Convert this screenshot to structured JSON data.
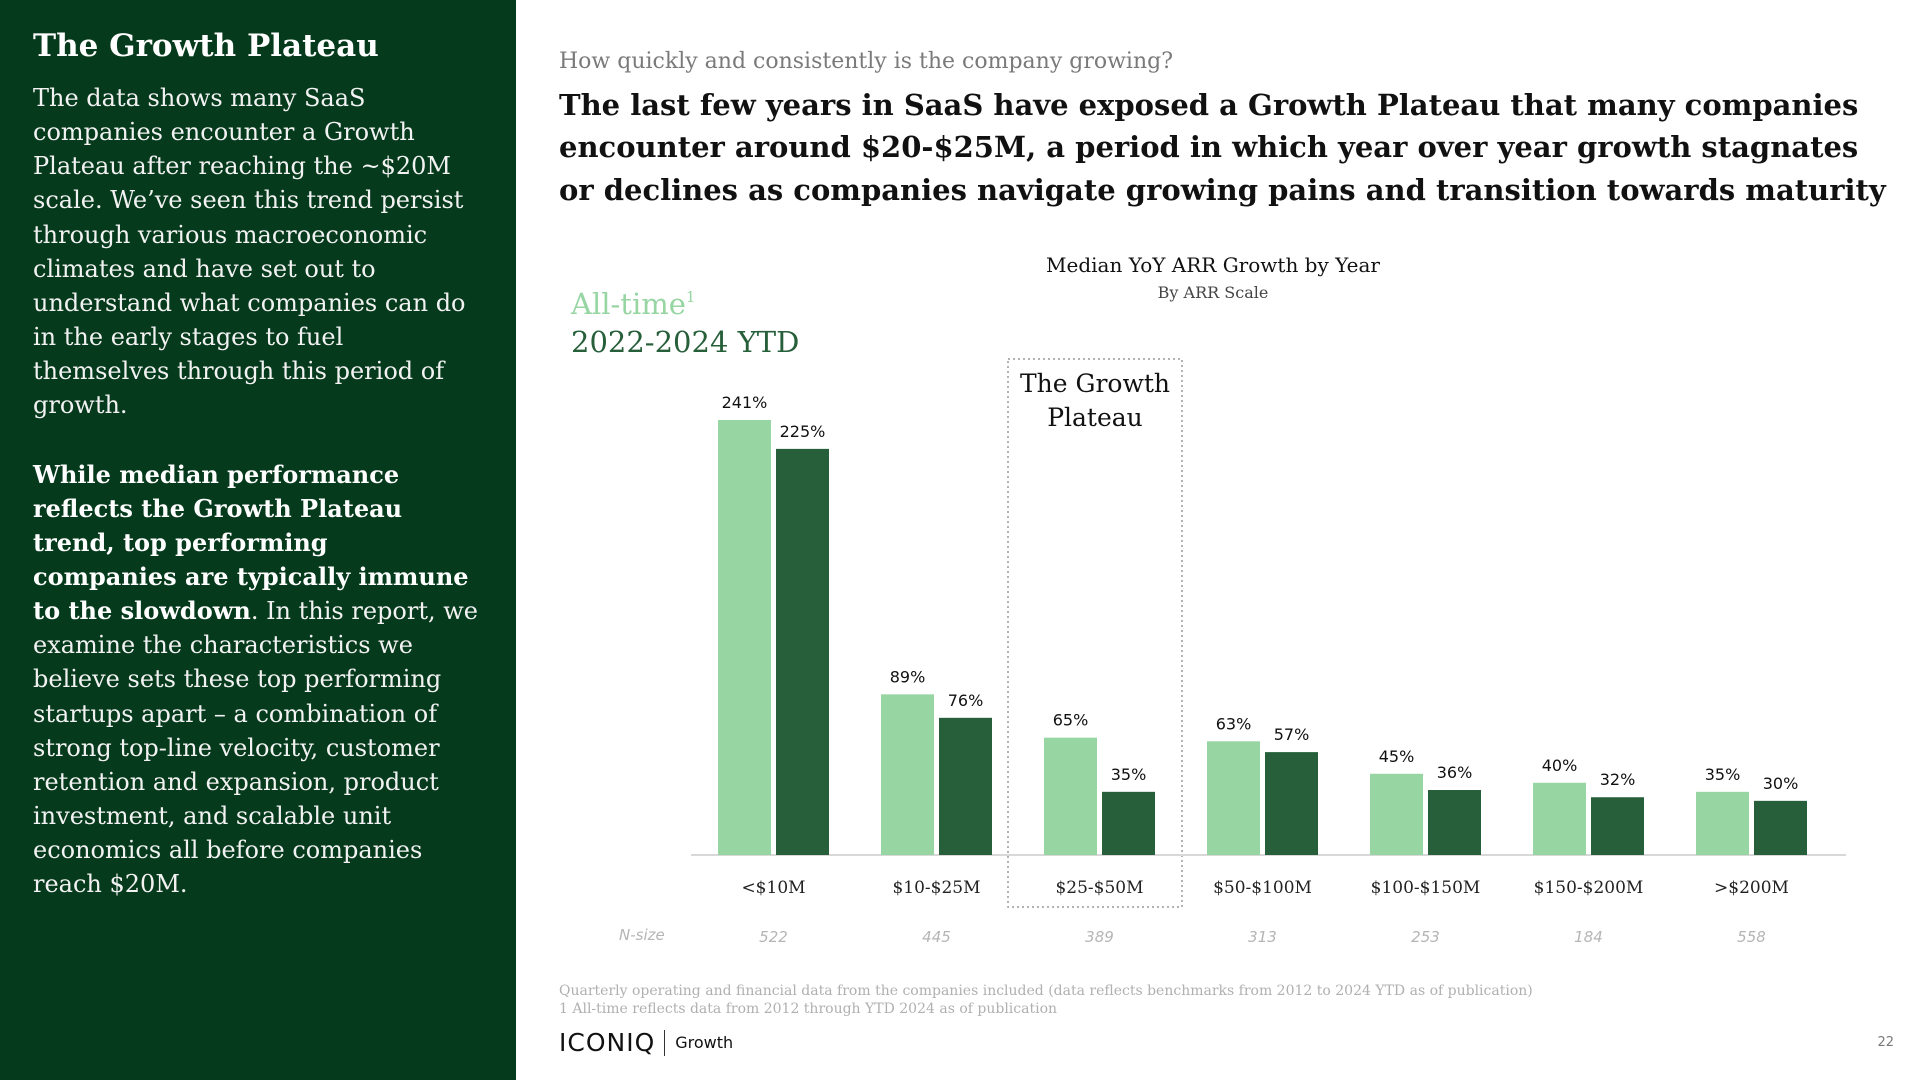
{
  "sidebar": {
    "title": "The Growth Plateau",
    "paragraph1": "The data shows many SaaS companies encounter a Growth Plateau after reaching the ~$20M scale. We’ve seen this trend persist through various macroeconomic climates and have set out to understand what companies can do in the early stages to fuel themselves through this period of growth.",
    "paragraph2_bold": "While median performance reflects the Growth Plateau trend, top performing companies are typically immune to the slowdown",
    "paragraph2_rest": ". In this report, we examine the characteristics we believe sets these top performing startups apart – a combination of strong top-line velocity, customer retention and expansion, product investment, and scalable unit economics all before companies reach $20M."
  },
  "header": {
    "kicker": "How quickly and consistently is the company growing?",
    "headline": "The last few years in SaaS have exposed a Growth Plateau that many companies encounter around $20-$25M, a period in which year over year growth stagnates or declines as companies navigate growing pains and transition towards maturity"
  },
  "chart_data": {
    "type": "bar",
    "title": "Median YoY ARR Growth by Year",
    "subtitle": "By ARR Scale",
    "categories": [
      "<$10M",
      "$10-$25M",
      "$25-$50M",
      "$50-$100M",
      "$100-$150M",
      "$150-$200M",
      ">$200M"
    ],
    "series": [
      {
        "name": "All-time",
        "values": [
          241,
          89,
          65,
          63,
          45,
          40,
          35
        ],
        "color": "#97d5a3"
      },
      {
        "name": "2022-2024 YTD",
        "values": [
          225,
          76,
          35,
          57,
          36,
          32,
          30
        ],
        "color": "#265f3a"
      }
    ],
    "value_suffix": "%",
    "legend_superscript": "1",
    "nsize_label": "N-size",
    "nsize": [
      "522",
      "445",
      "389",
      "313",
      "253",
      "184",
      "558"
    ],
    "annotation": "The Growth Plateau",
    "ylim": [
      0,
      241
    ],
    "grid": false,
    "legend_position": "top-left"
  },
  "footer": {
    "note1": "Quarterly operating and financial data from the companies included (data reflects benchmarks from 2012 to 2024 YTD as of publication)",
    "note2": "1 All-time reflects data from 2012 through YTD 2024 as of publication",
    "logo_main": "ICONIQ",
    "logo_sub": "Growth",
    "page_number": "22"
  }
}
